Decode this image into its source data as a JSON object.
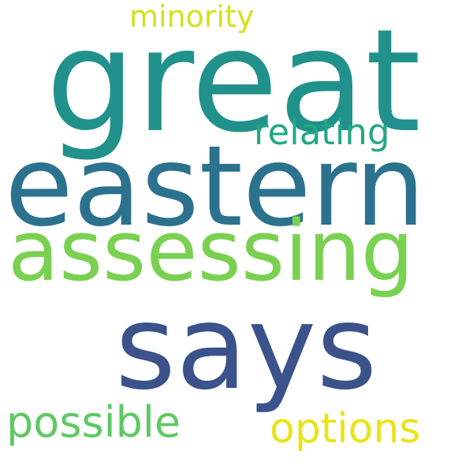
{
  "words": {
    "great": "great",
    "eastern": "eastern",
    "assessing": "assessing",
    "says": "says",
    "minority": "minority",
    "relating": "relating",
    "possible": "possible",
    "options": "options"
  },
  "colors": {
    "great": "#21918c",
    "eastern": "#2c728e",
    "assessing": "#7ad151",
    "says": "#3b528b",
    "minority": "#d2e21b",
    "relating": "#22a884",
    "possible": "#5ec962",
    "options": "#e8e419"
  }
}
